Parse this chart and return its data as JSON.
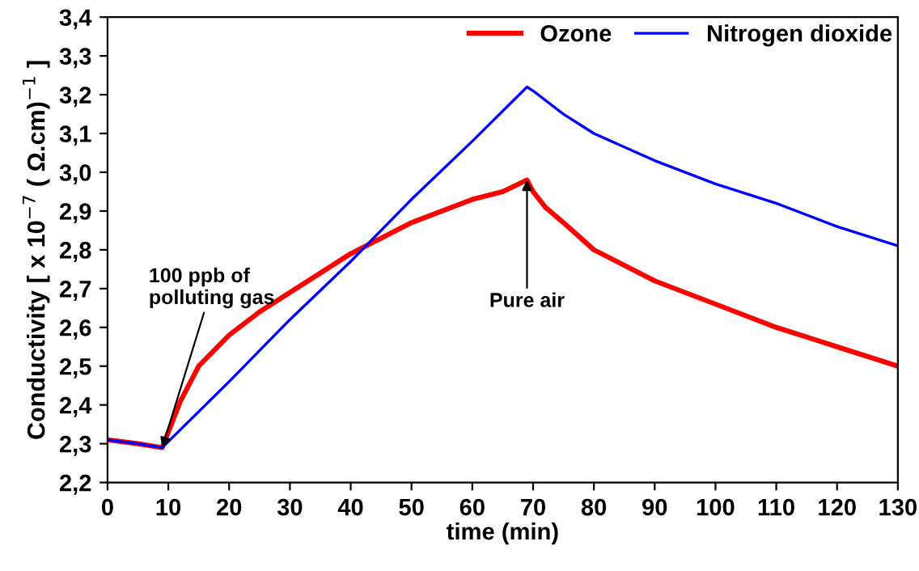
{
  "chart_data": {
    "type": "line",
    "xlabel": "time (min)",
    "ylabel": "Conductivity [ x 10$^{−7}$ ( Ω.cm)$^{−1}$ ]",
    "xlim": [
      0,
      130
    ],
    "xticks": [
      0,
      10,
      20,
      30,
      40,
      50,
      60,
      70,
      80,
      90,
      100,
      110,
      120,
      130
    ],
    "ylim": [
      2.2,
      3.4
    ],
    "yticks": [
      {
        "value": 2.2,
        "label": "2,2"
      },
      {
        "value": 2.3,
        "label": "2,3"
      },
      {
        "value": 2.4,
        "label": "2,4"
      },
      {
        "value": 2.5,
        "label": "2,5"
      },
      {
        "value": 2.6,
        "label": "2,6"
      },
      {
        "value": 2.7,
        "label": "2,7"
      },
      {
        "value": 2.8,
        "label": "2,8"
      },
      {
        "value": 2.9,
        "label": "2,9"
      },
      {
        "value": 3.0,
        "label": "3,0"
      },
      {
        "value": 3.1,
        "label": "3,1"
      },
      {
        "value": 3.2,
        "label": "3,2"
      },
      {
        "value": 3.3,
        "label": "3,3"
      },
      {
        "value": 3.4,
        "label": "3,4"
      }
    ],
    "grid": false,
    "legend": "top right",
    "marker": "none",
    "line_style": "solid",
    "series": [
      {
        "name": "Ozone",
        "color": "#ff0000",
        "x": [
          0,
          5,
          9,
          10,
          12,
          15,
          20,
          25,
          30,
          40,
          50,
          60,
          65,
          69,
          70,
          72,
          75,
          80,
          90,
          100,
          110,
          120,
          130
        ],
        "values": [
          2.31,
          2.3,
          2.29,
          2.33,
          2.41,
          2.5,
          2.58,
          2.64,
          2.69,
          2.79,
          2.87,
          2.93,
          2.95,
          2.98,
          2.95,
          2.91,
          2.87,
          2.8,
          2.72,
          2.66,
          2.6,
          2.55,
          2.5
        ]
      },
      {
        "name": "Nitrogen dioxide",
        "color": "#0000ff",
        "x": [
          0,
          5,
          9,
          20,
          30,
          40,
          50,
          60,
          69,
          70,
          75,
          80,
          90,
          100,
          110,
          120,
          130
        ],
        "values": [
          2.31,
          2.3,
          2.29,
          2.46,
          2.62,
          2.77,
          2.93,
          3.08,
          3.22,
          3.21,
          3.15,
          3.1,
          3.03,
          2.97,
          2.92,
          2.86,
          2.81
        ]
      }
    ],
    "annotations": [
      {
        "text": "100 ppb of\npolluting gas",
        "x": 9,
        "y": 2.29
      },
      {
        "text": "Pure air",
        "x": 69,
        "y": 2.98
      }
    ]
  }
}
